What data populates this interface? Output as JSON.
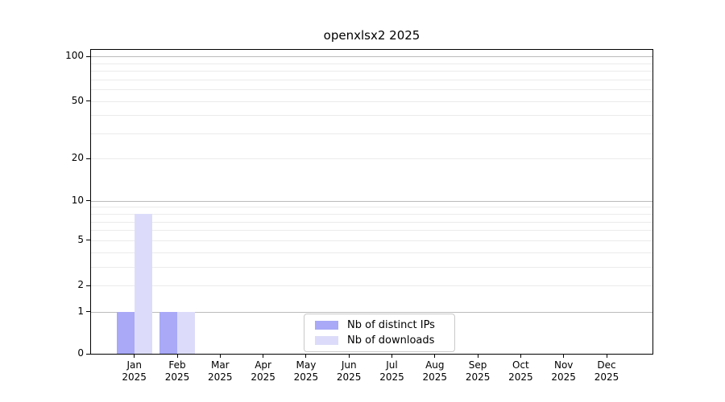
{
  "chart_data": {
    "type": "bar",
    "title": "openxlsx2 2025",
    "categories": [
      "Jan",
      "Feb",
      "Mar",
      "Apr",
      "May",
      "Jun",
      "Jul",
      "Aug",
      "Sep",
      "Oct",
      "Nov",
      "Dec"
    ],
    "category_year": "2025",
    "series": [
      {
        "name": "Nb of distinct IPs",
        "color": "#a9a9f7",
        "values": [
          1,
          1,
          0,
          0,
          0,
          0,
          0,
          0,
          0,
          0,
          0,
          0
        ]
      },
      {
        "name": "Nb of downloads",
        "color": "#dcdcfa",
        "values": [
          8,
          1,
          0,
          0,
          0,
          0,
          0,
          0,
          0,
          0,
          0,
          0
        ]
      }
    ],
    "xlabel": "",
    "ylabel": "",
    "y_scale": "log1p",
    "y_tick_labels": [
      0,
      1,
      2,
      5,
      10,
      20,
      50,
      100
    ],
    "major_gridlines": [
      1,
      10,
      100
    ],
    "minor_gridlines": [
      2,
      3,
      4,
      5,
      6,
      7,
      8,
      9,
      20,
      30,
      40,
      50,
      60,
      70,
      80,
      90
    ],
    "ylim": [
      0,
      110
    ],
    "grid": true,
    "legend": {
      "position": "bottom-center",
      "entries": [
        "Nb of distinct IPs",
        "Nb of downloads"
      ]
    },
    "colors": {
      "bar_distinct_ips": "#a9a9f7",
      "bar_downloads": "#dcdcfa",
      "major_grid": "#bbbbbb",
      "minor_grid": "#ebebeb",
      "axis": "#000000",
      "legend_border": "#c9c9c9",
      "text": "#000000",
      "background": "#ffffff"
    }
  }
}
